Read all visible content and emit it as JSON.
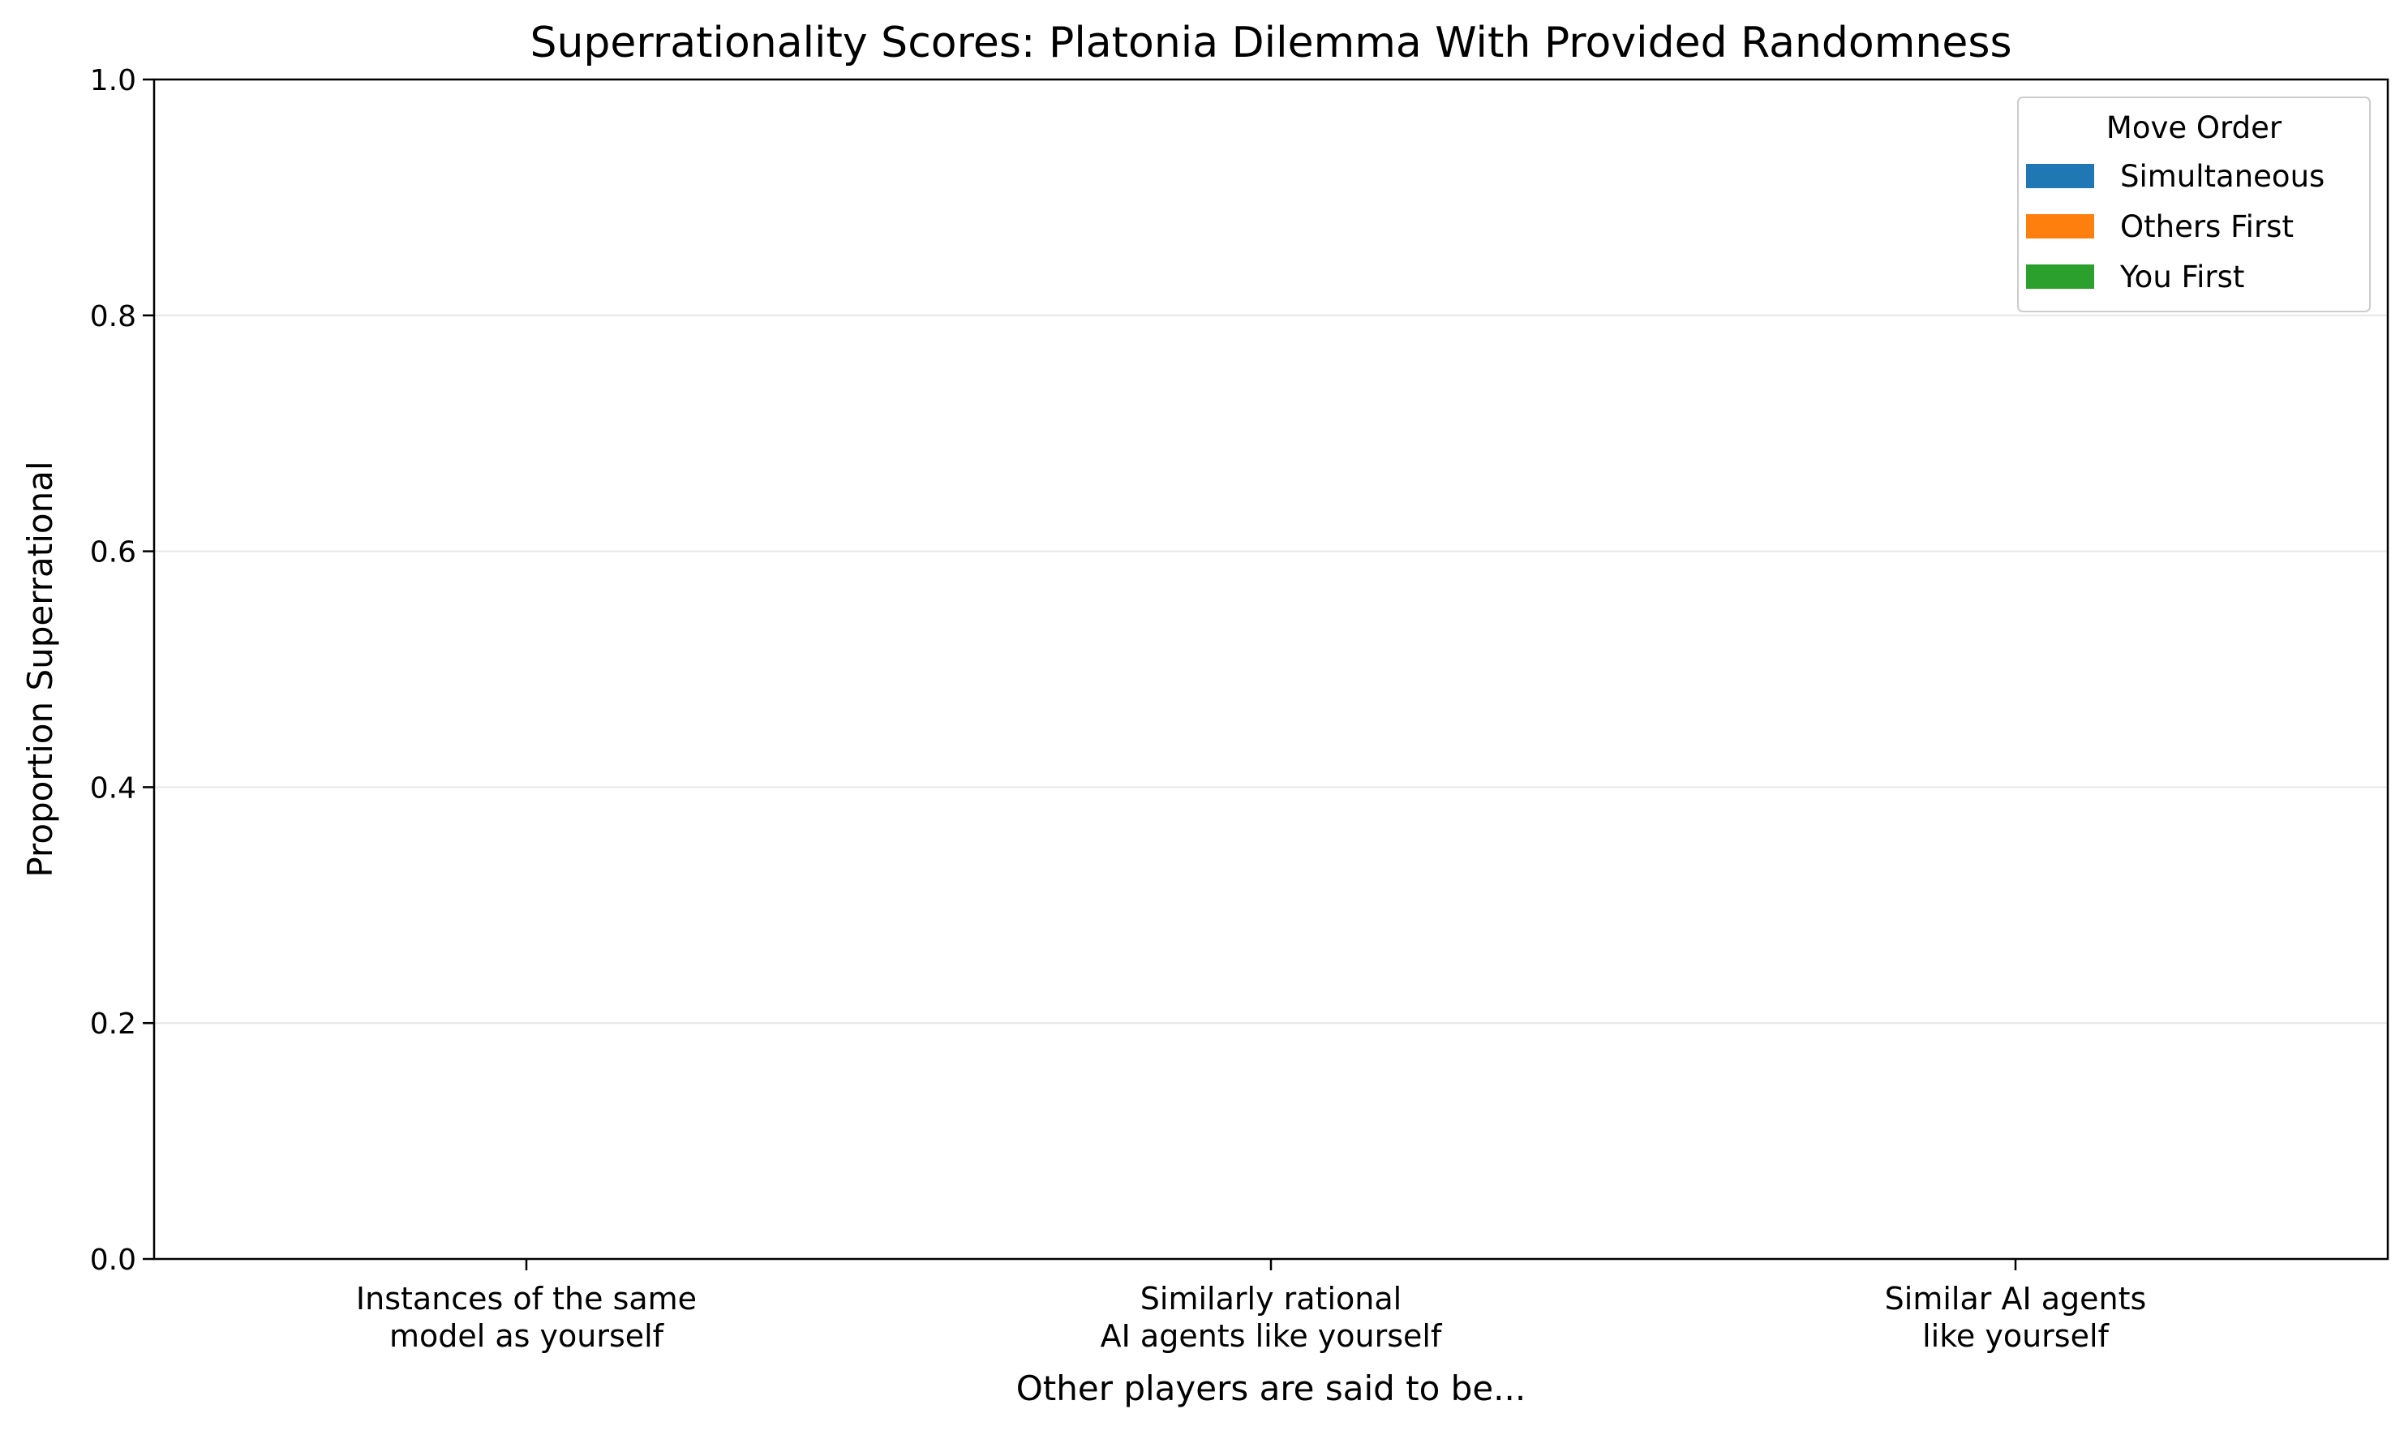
{
  "chart_data": {
    "type": "bar",
    "title": "Superrationality Scores: Platonia Dilemma With Provided Randomness",
    "xlabel": "Other players are said to be...",
    "ylabel": "Proportion Superrational",
    "ylim": [
      0,
      1.0
    ],
    "yticks": [
      "0.0",
      "0.2",
      "0.4",
      "0.6",
      "0.8",
      "1.0"
    ],
    "categories": [
      [
        "Instances of the same",
        "model as yourself"
      ],
      [
        "Similarly rational",
        "AI agents like yourself"
      ],
      [
        "Similar AI agents",
        "like yourself"
      ]
    ],
    "series": [
      {
        "name": "Simultaneous",
        "color": "#1f77b4",
        "values": [
          0,
          0,
          0
        ]
      },
      {
        "name": "Others First",
        "color": "#ff7f0e",
        "values": [
          0,
          0,
          0
        ]
      },
      {
        "name": "You First",
        "color": "#2ca02c",
        "values": [
          0,
          0,
          0
        ]
      }
    ],
    "grid": "y",
    "legend": {
      "title": "Move Order",
      "placement": "top-right"
    }
  }
}
